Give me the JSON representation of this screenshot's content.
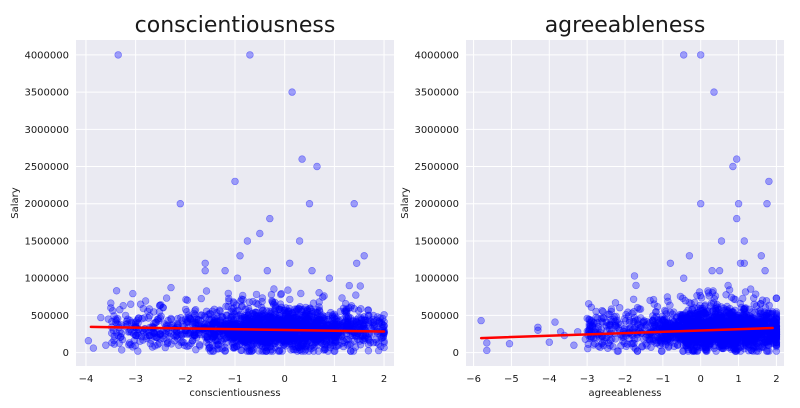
{
  "chart_data": [
    {
      "type": "scatter",
      "title": "conscientiousness",
      "xlabel": "conscientiousness",
      "ylabel": "Salary",
      "xlim": [
        -4.2,
        2.2
      ],
      "ylim": [
        -180000,
        4200000
      ],
      "xticks": [
        -4,
        -3,
        -2,
        -1,
        0,
        1,
        2
      ],
      "yticks": [
        0,
        500000,
        1000000,
        1500000,
        2000000,
        2500000,
        3000000,
        3500000,
        4000000
      ],
      "grid": true,
      "colors": {
        "points": "#0000ff",
        "fit_line": "#ff0000",
        "background": "#eaeaf2"
      },
      "fit_line": {
        "x": [
          -3.9,
          2.0
        ],
        "y": [
          345000,
          283000
        ]
      },
      "outliers": [
        {
          "x": -3.35,
          "y": 4000000
        },
        {
          "x": -0.7,
          "y": 4000000
        },
        {
          "x": 0.15,
          "y": 3500000
        },
        {
          "x": 0.35,
          "y": 2600000
        },
        {
          "x": 0.65,
          "y": 2500000
        },
        {
          "x": -1.0,
          "y": 2300000
        },
        {
          "x": -2.1,
          "y": 2000000
        },
        {
          "x": 0.5,
          "y": 2000000
        },
        {
          "x": 1.4,
          "y": 2000000
        },
        {
          "x": -0.3,
          "y": 1800000
        },
        {
          "x": -0.5,
          "y": 1600000
        },
        {
          "x": 0.3,
          "y": 1500000
        },
        {
          "x": -0.75,
          "y": 1500000
        },
        {
          "x": -0.9,
          "y": 1300000
        },
        {
          "x": 1.6,
          "y": 1300000
        },
        {
          "x": -1.6,
          "y": 1200000
        },
        {
          "x": 0.1,
          "y": 1200000
        },
        {
          "x": 1.45,
          "y": 1200000
        },
        {
          "x": -1.2,
          "y": 1100000
        },
        {
          "x": -1.6,
          "y": 1100000
        },
        {
          "x": -0.35,
          "y": 1100000
        },
        {
          "x": 0.55,
          "y": 1100000
        },
        {
          "x": 0.9,
          "y": 1000000
        },
        {
          "x": -0.95,
          "y": 1000000
        },
        {
          "x": 1.3,
          "y": 900000
        },
        {
          "x": -3.5,
          "y": 600000
        },
        {
          "x": -3.1,
          "y": 650000
        },
        {
          "x": -2.9,
          "y": 650000
        },
        {
          "x": -3.25,
          "y": 630000
        },
        {
          "x": -3.7,
          "y": 470000
        },
        {
          "x": -3.55,
          "y": 450000
        },
        {
          "x": -3.4,
          "y": 450000
        },
        {
          "x": -3.95,
          "y": 160000
        },
        {
          "x": -3.85,
          "y": 60000
        },
        {
          "x": -3.6,
          "y": 100000
        }
      ],
      "cloud": {
        "x_range": [
          -3.5,
          2.0
        ],
        "y_center": 300000,
        "y_spread": 160000,
        "count": 2000,
        "center_x": -0.1
      }
    },
    {
      "type": "scatter",
      "title": "agreeableness",
      "xlabel": "agreeableness",
      "ylabel": "Salary",
      "xlim": [
        -6.2,
        2.2
      ],
      "ylim": [
        -180000,
        4200000
      ],
      "xticks": [
        -6,
        -5,
        -4,
        -3,
        -2,
        -1,
        0,
        1,
        2
      ],
      "yticks": [
        0,
        500000,
        1000000,
        1500000,
        2000000,
        2500000,
        3000000,
        3500000,
        4000000
      ],
      "grid": true,
      "colors": {
        "points": "#0000ff",
        "fit_line": "#ff0000",
        "background": "#eaeaf2"
      },
      "fit_line": {
        "x": [
          -5.8,
          1.9
        ],
        "y": [
          195000,
          330000
        ]
      },
      "outliers": [
        {
          "x": -0.45,
          "y": 4000000
        },
        {
          "x": 0.0,
          "y": 4000000
        },
        {
          "x": 0.35,
          "y": 3500000
        },
        {
          "x": 0.95,
          "y": 2600000
        },
        {
          "x": 0.85,
          "y": 2500000
        },
        {
          "x": 1.8,
          "y": 2300000
        },
        {
          "x": 0.0,
          "y": 2000000
        },
        {
          "x": 1.0,
          "y": 2000000
        },
        {
          "x": 1.75,
          "y": 2000000
        },
        {
          "x": 0.95,
          "y": 1800000
        },
        {
          "x": 0.55,
          "y": 1500000
        },
        {
          "x": 1.15,
          "y": 1500000
        },
        {
          "x": 1.6,
          "y": 1300000
        },
        {
          "x": -0.3,
          "y": 1300000
        },
        {
          "x": -0.8,
          "y": 1200000
        },
        {
          "x": 1.05,
          "y": 1200000
        },
        {
          "x": 1.15,
          "y": 1200000
        },
        {
          "x": 0.3,
          "y": 1100000
        },
        {
          "x": 0.5,
          "y": 1100000
        },
        {
          "x": -1.75,
          "y": 1030000
        },
        {
          "x": 1.7,
          "y": 1100000
        },
        {
          "x": -0.45,
          "y": 1000000
        },
        {
          "x": -5.8,
          "y": 430000
        },
        {
          "x": -5.65,
          "y": 130000
        },
        {
          "x": -5.65,
          "y": 30000
        },
        {
          "x": -5.05,
          "y": 120000
        },
        {
          "x": -4.3,
          "y": 340000
        },
        {
          "x": -4.3,
          "y": 300000
        },
        {
          "x": -3.85,
          "y": 410000
        },
        {
          "x": -3.7,
          "y": 280000
        },
        {
          "x": -3.6,
          "y": 230000
        },
        {
          "x": -3.35,
          "y": 100000
        },
        {
          "x": -3.25,
          "y": 280000
        },
        {
          "x": -4.0,
          "y": 140000
        },
        {
          "x": -3.05,
          "y": 180000
        }
      ],
      "cloud": {
        "x_range": [
          -3.0,
          2.0
        ],
        "y_center": 290000,
        "y_spread": 160000,
        "count": 2000,
        "center_x": 0.5
      }
    }
  ]
}
